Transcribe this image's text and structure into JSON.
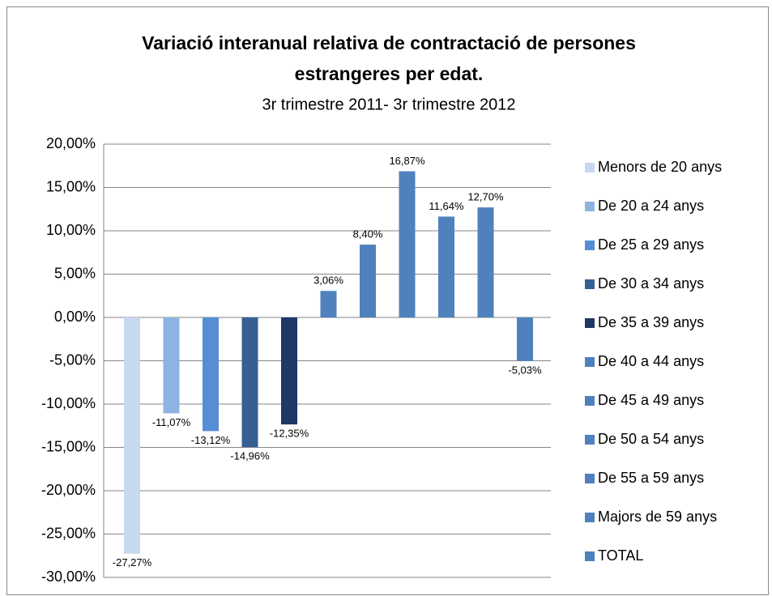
{
  "chart_data": {
    "type": "bar",
    "title": [
      "Variació interanual relativa  de contractació de persones",
      "estrangeres per edat."
    ],
    "subtitle": "3r trimestre 2011- 3r trimestre 2012",
    "categories": [
      "Menors de 20 anys",
      "De 20 a 24 anys",
      "De 25 a 29 anys",
      "De 30 a 34 anys",
      "De 35 a 39 anys",
      "De 40 a 44 anys",
      "De 45 a 49 anys",
      "De 50 a 54 anys",
      "De 55 a 59 anys",
      "Majors de 59 anys",
      "TOTAL"
    ],
    "values": [
      -27.27,
      -11.07,
      -13.12,
      -14.96,
      -12.35,
      3.06,
      8.4,
      16.87,
      11.64,
      12.7,
      -5.03
    ],
    "value_labels": [
      "-27,27%",
      "-11,07%",
      "-13,12%",
      "-14,96%",
      "-12,35%",
      "3,06%",
      "8,40%",
      "16,87%",
      "11,64%",
      "12,70%",
      "-5,03%"
    ],
    "colors": [
      "#c6d9f1",
      "#8db3e2",
      "#558ed5",
      "#376092",
      "#1f3864",
      "#4f81bd",
      "#4f81bd",
      "#4f81bd",
      "#4f81bd",
      "#4f81bd",
      "#4f81bd"
    ],
    "ylim": [
      -30,
      20
    ],
    "yticks": [
      {
        "value": -30,
        "label": "-30,00%"
      },
      {
        "value": -25,
        "label": "-25,00%"
      },
      {
        "value": -20,
        "label": "-20,00%"
      },
      {
        "value": -15,
        "label": "-15,00%"
      },
      {
        "value": -10,
        "label": "-10,00%"
      },
      {
        "value": -5,
        "label": "-5,00%"
      },
      {
        "value": 0,
        "label": "0,00%"
      },
      {
        "value": 5,
        "label": "5,00%"
      },
      {
        "value": 10,
        "label": "10,00%"
      },
      {
        "value": 15,
        "label": "15,00%"
      },
      {
        "value": 20,
        "label": "20,00%"
      }
    ],
    "grid": true,
    "legend": "right"
  }
}
